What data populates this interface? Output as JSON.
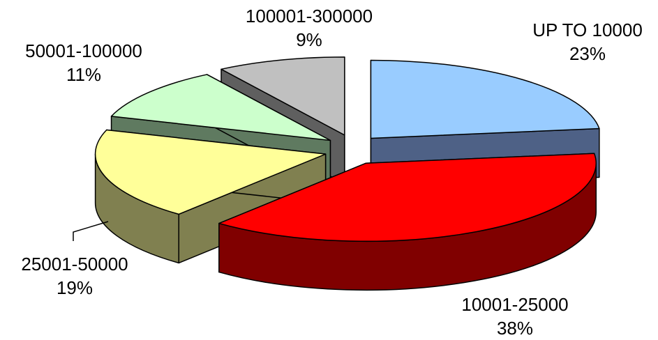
{
  "chart_data": {
    "type": "pie",
    "title": "",
    "categories": [
      "UP TO 10000",
      "10001-25000",
      "25001-50000",
      "50001-100000",
      "100001-300000"
    ],
    "values": [
      23,
      38,
      19,
      11,
      9
    ],
    "value_labels": [
      "23%",
      "38%",
      "19%",
      "11%",
      "9%"
    ],
    "unit": "%",
    "style": "3d-exploded",
    "legend": "none",
    "colors": {
      "top": [
        "#99CCFF",
        "#FF0000",
        "#FFFF99",
        "#CCFFCC",
        "#C0C0C0"
      ],
      "side": [
        "#4E6186",
        "#800000",
        "#808050",
        "#5F7A60",
        "#5F5F5F"
      ]
    }
  }
}
